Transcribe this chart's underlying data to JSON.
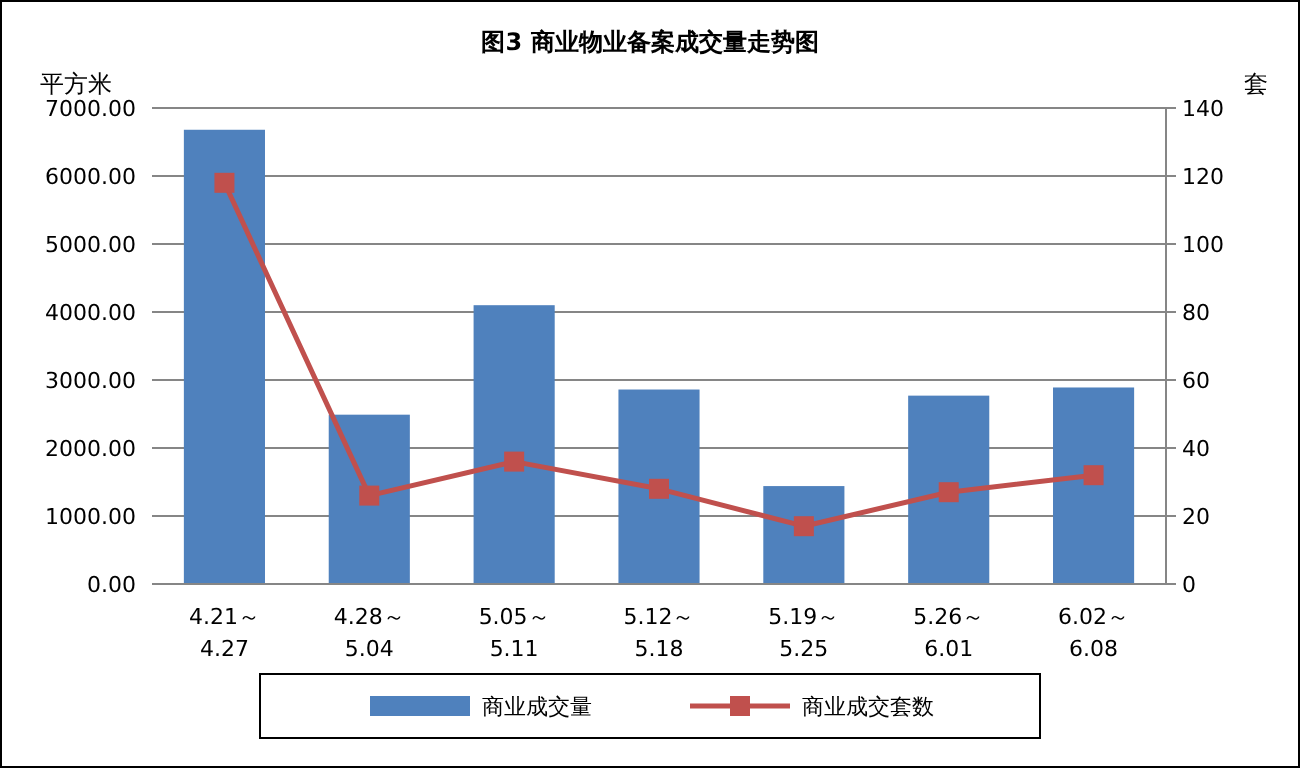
{
  "chart_data": {
    "type": "bar",
    "title": "图3   商业物业备案成交量走势图",
    "ylabel": "平方米",
    "y2label": "套",
    "categories": [
      "4.21～4.27",
      "4.28～5.04",
      "5.05～5.11",
      "5.12～5.18",
      "5.19～5.25",
      "5.26～6.01",
      "6.02～6.08"
    ],
    "series": [
      {
        "name": "商业成交量",
        "color": "#4f81bd",
        "values": [
          6680,
          2490,
          4100,
          2860,
          1440,
          2770,
          2890
        ]
      },
      {
        "name": "商业成交套数",
        "type": "line",
        "axis": "y2",
        "color": "#c0504d",
        "marker": "square",
        "values": [
          118,
          26,
          36,
          28,
          17,
          27,
          32
        ]
      }
    ],
    "ylim": [
      0,
      7000
    ],
    "yticks": [
      {
        "value": 0,
        "label": "0.00"
      },
      {
        "value": 1000,
        "label": "1000.00"
      },
      {
        "value": 2000,
        "label": "2000.00"
      },
      {
        "value": 3000,
        "label": "3000.00"
      },
      {
        "value": 4000,
        "label": "4000.00"
      },
      {
        "value": 5000,
        "label": "5000.00"
      },
      {
        "value": 6000,
        "label": "6000.00"
      },
      {
        "value": 7000,
        "label": "7000.00"
      }
    ],
    "y2lim": [
      0,
      140
    ],
    "y2ticks": [
      0,
      20,
      40,
      60,
      80,
      100,
      120,
      140
    ],
    "grid": "y",
    "legend": "bottom"
  }
}
